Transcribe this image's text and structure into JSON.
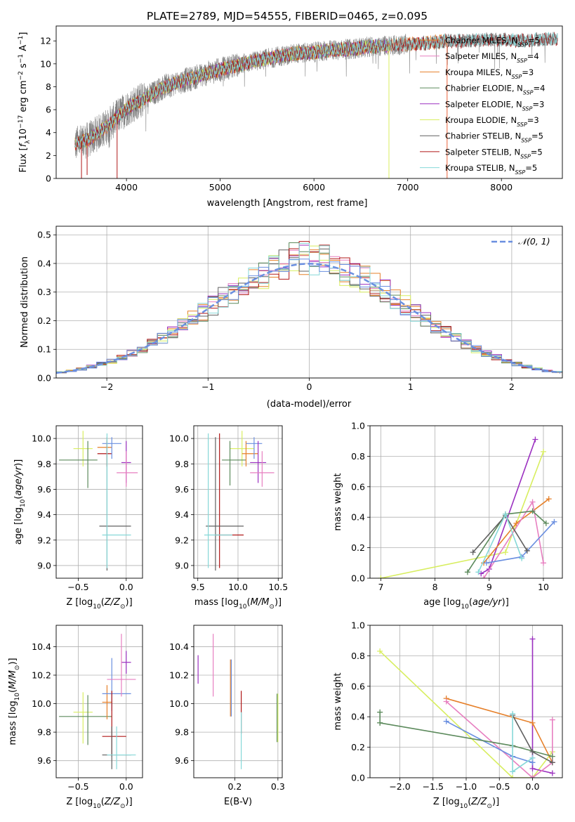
{
  "colors": {
    "c_miles": "#e6802a",
    "s_miles": "#e77fc0",
    "k_miles": "#e6802a",
    "c_elodie": "#5c8a5c",
    "s_elodie": "#9b30c0",
    "k_elodie": "#d8ee60",
    "c_stelib": "#606060",
    "s_stelib": "#b01818",
    "k_stelib": "#86d8d8",
    "blue": "#6a8fe0",
    "gray": "#808080",
    "vline": "#ef7c5a"
  },
  "chart_data": [
    {
      "type": "line",
      "id": "spectrum",
      "title": "PLATE=2789, MJD=54555, FIBERID=0465, z=0.095",
      "xlabel": "wavelength [Angstrom, rest frame]",
      "ylabel": "Flux [fλ10⁻¹⁷ erg cm⁻² s⁻¹ A⁻¹]",
      "xlim": [
        3250,
        8650
      ],
      "ylim": [
        0,
        13.3
      ],
      "xticks": [
        4000,
        5000,
        6000,
        7000,
        8000
      ],
      "yticks": [
        0,
        2,
        4,
        6,
        8,
        10,
        12
      ],
      "grid": false,
      "legend_position": "top-right",
      "vline_x": 7420,
      "series": [
        {
          "name": "Chabrier MILES, N_SSP=5",
          "color": "c_miles",
          "wave_range": [
            3450,
            7420
          ]
        },
        {
          "name": "Salpeter MILES, N_SSP=4",
          "color": "s_miles",
          "wave_range": [
            3450,
            7420
          ]
        },
        {
          "name": "Kroupa MILES, N_SSP=3",
          "color": "k_miles",
          "wave_range": [
            3450,
            7420
          ]
        },
        {
          "name": "Chabrier ELODIE, N_SSP=4",
          "color": "c_elodie",
          "wave_range": [
            3450,
            6800
          ]
        },
        {
          "name": "Salpeter ELODIE, N_SSP=3",
          "color": "s_elodie",
          "wave_range": [
            3450,
            6800
          ]
        },
        {
          "name": "Kroupa ELODIE, N_SSP=3",
          "color": "k_elodie",
          "wave_range": [
            3450,
            6800
          ]
        },
        {
          "name": "Chabrier STELIB, N_SSP=5",
          "color": "c_stelib",
          "wave_range": [
            3450,
            8600
          ]
        },
        {
          "name": "Salpeter STELIB, N_SSP=5",
          "color": "s_stelib",
          "wave_range": [
            3450,
            8600
          ]
        },
        {
          "name": "Kroupa STELIB, N_SSP=5",
          "color": "k_stelib",
          "wave_range": [
            3450,
            8600
          ]
        }
      ],
      "continuum": {
        "x": [
          3450,
          3600,
          3800,
          4000,
          4200,
          4400,
          4600,
          4800,
          5000,
          5200,
          5400,
          5600,
          5800,
          6000,
          6200,
          6400,
          6600,
          6800,
          7000,
          7200,
          7400,
          7600,
          7800,
          8000,
          8200,
          8400,
          8600
        ],
        "y": [
          3.0,
          3.4,
          4.6,
          6.1,
          7.0,
          8.0,
          8.5,
          9.0,
          9.5,
          9.9,
          10.3,
          10.6,
          10.9,
          11.0,
          11.2,
          11.3,
          11.5,
          11.6,
          11.7,
          11.8,
          12.0,
          12.0,
          12.1,
          12.1,
          12.0,
          12.1,
          12.2
        ]
      }
    },
    {
      "type": "step",
      "id": "residuals",
      "xlabel": "(data-model)/error",
      "ylabel": "Normed distribution",
      "xlim": [
        -2.5,
        2.5
      ],
      "ylim": [
        0,
        0.53
      ],
      "xticks": [
        -2,
        -1,
        0,
        1,
        2
      ],
      "yticks": [
        0.0,
        0.1,
        0.2,
        0.3,
        0.4,
        0.5
      ],
      "grid": true,
      "legend_position": "top-right",
      "reference_curve": {
        "name": "𝒩(0, 1)",
        "type": "gaussian",
        "mean": 0,
        "sigma": 1,
        "color": "blue"
      },
      "bin_width": 0.1,
      "series_colors": [
        "c_miles",
        "s_miles",
        "k_miles",
        "c_elodie",
        "s_elodie",
        "k_elodie",
        "c_stelib",
        "s_stelib",
        "k_stelib",
        "blue"
      ]
    },
    {
      "type": "errorbar",
      "id": "age-vs-Z",
      "xlabel": "Z [log₁₀(Z/Z⊙)]",
      "ylabel": "age  [log₁₀(age/yr)]",
      "xlim": [
        -0.73,
        0.17
      ],
      "ylim": [
        8.9,
        10.1
      ],
      "xticks": [
        -0.5,
        0.0
      ],
      "yticks": [
        9.0,
        9.2,
        9.4,
        9.6,
        9.8,
        10.0
      ],
      "grid": true,
      "points": [
        {
          "x": -0.45,
          "y": 9.92,
          "xerr": [
            0.1,
            0.1
          ],
          "yerr": [
            0.14,
            0.14
          ],
          "color": "k_elodie"
        },
        {
          "x": -0.4,
          "y": 9.83,
          "xerr": [
            0.3,
            0.1
          ],
          "yerr": [
            0.22,
            0.15
          ],
          "color": "c_elodie"
        },
        {
          "x": -0.2,
          "y": 9.93,
          "xerr": [
            0.1,
            0.05
          ],
          "yerr": [
            0.15,
            0.06
          ],
          "color": "c_miles"
        },
        {
          "x": -0.2,
          "y": 9.88,
          "xerr": [
            0.1,
            0.05
          ],
          "yerr": [
            0.1,
            0.1
          ],
          "color": "s_stelib"
        },
        {
          "x": -0.15,
          "y": 9.96,
          "xerr": [
            0.1,
            0.1
          ],
          "yerr": [
            0.12,
            0.05
          ],
          "color": "blue"
        },
        {
          "x": 0.0,
          "y": 9.81,
          "xerr": [
            0.05,
            0.05
          ],
          "yerr": [
            0.16,
            0.17
          ],
          "color": "s_elodie"
        },
        {
          "x": 0.0,
          "y": 9.73,
          "xerr": [
            0.1,
            0.12
          ],
          "yerr": [
            0.11,
            0.17
          ],
          "color": "s_miles"
        },
        {
          "x": -0.2,
          "y": 9.31,
          "xerr": [
            0.08,
            0.25
          ],
          "yerr": [
            0.35,
            0.7
          ],
          "color": "c_stelib"
        },
        {
          "x": -0.2,
          "y": 9.24,
          "xerr": [
            0.05,
            0.25
          ],
          "yerr": [
            0.26,
            0.8
          ],
          "color": "k_stelib"
        }
      ]
    },
    {
      "type": "errorbar",
      "id": "age-vs-mass",
      "xlabel": "mass [log₁₀(M/M⊙)]",
      "ylabel": "",
      "xlim": [
        9.45,
        10.55
      ],
      "ylim": [
        8.9,
        10.1
      ],
      "xticks": [
        9.5,
        10.0,
        10.5
      ],
      "yticks": [
        9.0,
        9.2,
        9.4,
        9.6,
        9.8,
        10.0
      ],
      "grid": true,
      "points": [
        {
          "x": 10.05,
          "y": 9.92,
          "xerr": [
            0.15,
            0.15
          ],
          "yerr": [
            0.14,
            0.14
          ],
          "color": "k_elodie"
        },
        {
          "x": 9.9,
          "y": 9.83,
          "xerr": [
            0.1,
            0.2
          ],
          "yerr": [
            0.2,
            0.15
          ],
          "color": "c_elodie"
        },
        {
          "x": 10.1,
          "y": 9.88,
          "xerr": [
            0.05,
            0.15
          ],
          "yerr": [
            0.1,
            0.1
          ],
          "color": "c_miles"
        },
        {
          "x": 10.2,
          "y": 9.96,
          "xerr": [
            0.1,
            0.1
          ],
          "yerr": [
            0.12,
            0.05
          ],
          "color": "blue"
        },
        {
          "x": 10.25,
          "y": 9.81,
          "xerr": [
            0.1,
            0.1
          ],
          "yerr": [
            0.16,
            0.17
          ],
          "color": "s_elodie"
        },
        {
          "x": 10.3,
          "y": 9.73,
          "xerr": [
            0.15,
            0.15
          ],
          "yerr": [
            0.11,
            0.17
          ],
          "color": "s_miles"
        },
        {
          "x": 9.77,
          "y": 9.24,
          "xerr": [
            0.05,
            0.3
          ],
          "yerr": [
            0.26,
            0.8
          ],
          "color": "s_stelib"
        },
        {
          "x": 9.72,
          "y": 9.31,
          "xerr": [
            0.12,
            0.35
          ],
          "yerr": [
            0.35,
            0.7
          ],
          "color": "c_stelib"
        },
        {
          "x": 9.63,
          "y": 9.24,
          "xerr": [
            0.05,
            0.3
          ],
          "yerr": [
            0.26,
            0.8
          ],
          "color": "k_stelib"
        }
      ]
    },
    {
      "type": "line",
      "id": "massweight-vs-age",
      "xlabel": "age  [log₁₀(age/yr)]",
      "ylabel": "mass weight",
      "xlim": [
        6.8,
        10.35
      ],
      "ylim": [
        0,
        1.0
      ],
      "xticks": [
        7,
        8,
        9,
        10
      ],
      "yticks": [
        0.0,
        0.2,
        0.4,
        0.6,
        0.8,
        1.0
      ],
      "grid": true,
      "series": [
        {
          "color": "k_elodie",
          "x": [
            7.0,
            9.3,
            10.0
          ],
          "y": [
            0.0,
            0.17,
            0.83
          ]
        },
        {
          "color": "s_elodie",
          "x": [
            8.85,
            9.0,
            9.85
          ],
          "y": [
            0.03,
            0.06,
            0.91
          ]
        },
        {
          "color": "c_miles",
          "x": [
            8.9,
            9.5,
            10.1
          ],
          "y": [
            0.1,
            0.36,
            0.52
          ]
        },
        {
          "color": "s_miles",
          "x": [
            8.9,
            9.8,
            10.0
          ],
          "y": [
            0.0,
            0.5,
            0.1
          ]
        },
        {
          "color": "blue",
          "x": [
            8.95,
            9.6,
            10.2
          ],
          "y": [
            0.1,
            0.14,
            0.37
          ]
        },
        {
          "color": "c_elodie",
          "x": [
            8.6,
            9.3,
            9.8,
            10.05
          ],
          "y": [
            0.04,
            0.42,
            0.44,
            0.36
          ]
        },
        {
          "color": "c_stelib",
          "x": [
            8.7,
            9.3,
            9.7
          ],
          "y": [
            0.17,
            0.41,
            0.18
          ]
        },
        {
          "color": "k_stelib",
          "x": [
            8.8,
            9.3,
            9.6
          ],
          "y": [
            0.04,
            0.42,
            0.13
          ]
        }
      ]
    },
    {
      "type": "errorbar",
      "id": "mass-vs-Z",
      "xlabel": "Z [log₁₀(Z/Z⊙)]",
      "ylabel": "mass [log₁₀(M/M⊙)]",
      "xlim": [
        -0.73,
        0.17
      ],
      "ylim": [
        9.48,
        10.55
      ],
      "xticks": [
        -0.5,
        0.0
      ],
      "yticks": [
        9.6,
        9.8,
        10.0,
        10.2,
        10.4
      ],
      "grid": true,
      "points": [
        {
          "x": -0.45,
          "y": 9.94,
          "xerr": [
            0.1,
            0.1
          ],
          "yerr": [
            0.22,
            0.14
          ],
          "color": "k_elodie"
        },
        {
          "x": -0.4,
          "y": 9.91,
          "xerr": [
            0.3,
            0.25
          ],
          "yerr": [
            0.2,
            0.15
          ],
          "color": "c_elodie"
        },
        {
          "x": -0.2,
          "y": 10.01,
          "xerr": [
            0.05,
            0.05
          ],
          "yerr": [
            0.12,
            0.12
          ],
          "color": "c_miles"
        },
        {
          "x": -0.15,
          "y": 10.07,
          "xerr": [
            0.1,
            0.2
          ],
          "yerr": [
            0.12,
            0.25
          ],
          "color": "blue"
        },
        {
          "x": 0.0,
          "y": 10.29,
          "xerr": [
            0.05,
            0.05
          ],
          "yerr": [
            0.08,
            0.08
          ],
          "color": "s_elodie"
        },
        {
          "x": -0.05,
          "y": 10.17,
          "xerr": [
            0.15,
            0.15
          ],
          "yerr": [
            0.12,
            0.32
          ],
          "color": "s_miles"
        },
        {
          "x": -0.15,
          "y": 9.77,
          "xerr": [
            0.1,
            0.15
          ],
          "yerr": [
            0.14,
            0.32
          ],
          "color": "s_stelib"
        },
        {
          "x": -0.15,
          "y": 9.64,
          "xerr": [
            0.1,
            0.2
          ],
          "yerr": [
            0.1,
            0.2
          ],
          "color": "c_stelib"
        },
        {
          "x": -0.1,
          "y": 9.64,
          "xerr": [
            0.1,
            0.2
          ],
          "yerr": [
            0.1,
            0.2
          ],
          "color": "k_stelib"
        }
      ]
    },
    {
      "type": "errorbar",
      "id": "mass-vs-ebv",
      "xlabel": "E(B-V)",
      "ylabel": "",
      "xlim": [
        0.105,
        0.31
      ],
      "ylim": [
        9.48,
        10.55
      ],
      "xticks": [
        0.2,
        0.3
      ],
      "yticks": [
        9.6,
        9.8,
        10.0,
        10.2,
        10.4
      ],
      "grid": true,
      "points": [
        {
          "x": 0.115,
          "y": 10.24,
          "xerr": [
            0,
            0
          ],
          "yerr": [
            0.1,
            0.1
          ],
          "color": "s_elodie"
        },
        {
          "x": 0.15,
          "y": 10.27,
          "xerr": [
            0,
            0
          ],
          "yerr": [
            0.22,
            0.22
          ],
          "color": "s_miles"
        },
        {
          "x": 0.19,
          "y": 10.11,
          "xerr": [
            0,
            0
          ],
          "yerr": [
            0.2,
            0.2
          ],
          "color": "c_miles"
        },
        {
          "x": 0.192,
          "y": 10.11,
          "xerr": [
            0,
            0
          ],
          "yerr": [
            0.2,
            0.2
          ],
          "color": "blue"
        },
        {
          "x": 0.215,
          "y": 9.94,
          "xerr": [
            0,
            0
          ],
          "yerr": [
            0.15,
            0.15
          ],
          "color": "s_stelib"
        },
        {
          "x": 0.215,
          "y": 9.74,
          "xerr": [
            0,
            0
          ],
          "yerr": [
            0.2,
            0.2
          ],
          "color": "k_stelib"
        },
        {
          "x": 0.3,
          "y": 9.9,
          "xerr": [
            0,
            0
          ],
          "yerr": [
            0.17,
            0.17
          ],
          "color": "k_elodie"
        },
        {
          "x": 0.298,
          "y": 9.9,
          "xerr": [
            0,
            0
          ],
          "yerr": [
            0.17,
            0.17
          ],
          "color": "c_elodie"
        }
      ]
    },
    {
      "type": "line",
      "id": "massweight-vs-Z",
      "xlabel": "Z [log₁₀(Z/Z⊙)]",
      "ylabel": "mass weight",
      "xlim": [
        -2.45,
        0.45
      ],
      "ylim": [
        0,
        1.0
      ],
      "xticks": [
        -2.0,
        -1.5,
        -1.0,
        -0.5,
        0.0
      ],
      "yticks": [
        0.0,
        0.2,
        0.4,
        0.6,
        0.8,
        1.0
      ],
      "grid": true,
      "series": [
        {
          "color": "k_elodie",
          "x": [
            -2.3,
            -0.3,
            0.0,
            0.3
          ],
          "y": [
            0.83,
            0.0,
            0.0,
            0.17
          ]
        },
        {
          "color": "s_elodie",
          "x": [
            0.0,
            0.0,
            0.3
          ],
          "y": [
            0.91,
            0.06,
            0.03
          ]
        },
        {
          "color": "c_miles",
          "x": [
            -1.3,
            0.0,
            0.3
          ],
          "y": [
            0.52,
            0.36,
            0.1
          ]
        },
        {
          "color": "s_miles",
          "x": [
            -1.3,
            0.0,
            0.3,
            0.3
          ],
          "y": [
            0.5,
            0.0,
            0.1,
            0.38
          ]
        },
        {
          "color": "blue",
          "x": [
            -1.3,
            -0.3,
            0.0
          ],
          "y": [
            0.37,
            0.14,
            0.1
          ]
        },
        {
          "color": "c_elodie",
          "x": [
            -2.3,
            -0.3,
            0.3
          ],
          "y": [
            0.36,
            0.21,
            0.14
          ]
        },
        {
          "color": "c_elodie",
          "x": [
            -2.3,
            -2.3
          ],
          "y": [
            0.43,
            0.36
          ]
        },
        {
          "color": "c_stelib",
          "x": [
            -0.3,
            0.0,
            0.3
          ],
          "y": [
            0.41,
            0.17,
            0.1
          ]
        },
        {
          "color": "k_stelib",
          "x": [
            -0.3,
            -0.3,
            0.0
          ],
          "y": [
            0.42,
            0.04,
            0.13
          ]
        }
      ]
    }
  ]
}
